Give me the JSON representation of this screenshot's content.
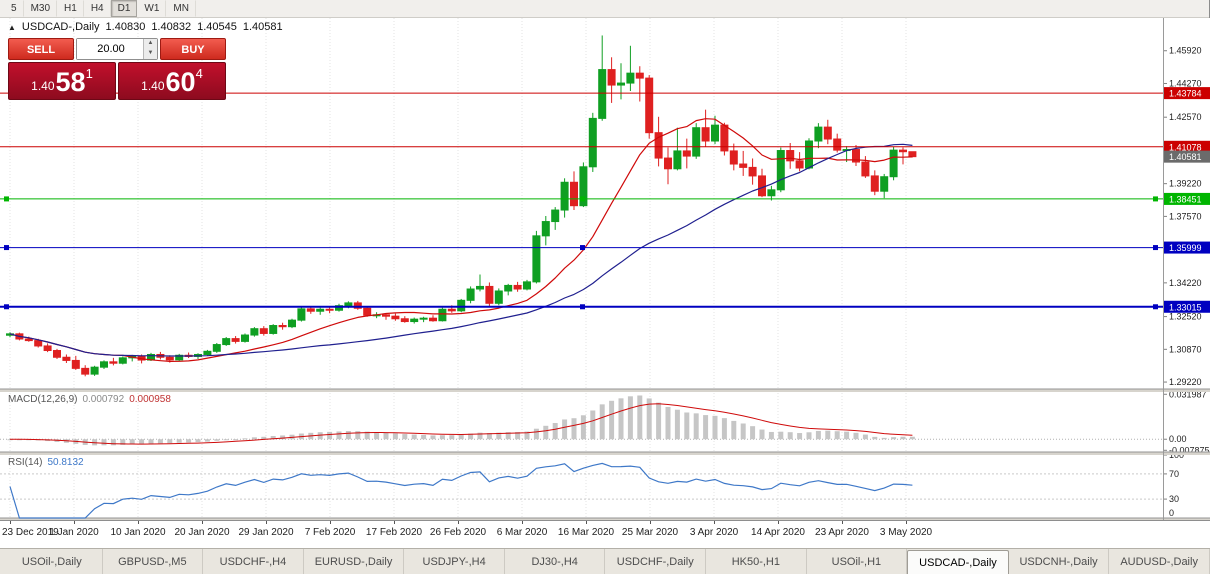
{
  "toolbar": {
    "timeframes": [
      "5",
      "M30",
      "H1",
      "H4",
      "D1",
      "W1",
      "MN"
    ],
    "active": "D1"
  },
  "chart_header": {
    "symbol": "USDCAD-,Daily",
    "open": "1.40830",
    "high": "1.40832",
    "low": "1.40545",
    "close": "1.40581"
  },
  "trade_panel": {
    "sell_label": "SELL",
    "buy_label": "BUY",
    "volume": "20.00",
    "sell_price": {
      "prefix": "1.40",
      "big": "58",
      "sup": "1"
    },
    "buy_price": {
      "prefix": "1.40",
      "big": "60",
      "sup": "4"
    }
  },
  "chart_data": {
    "type": "candlestick",
    "symbol": "USDCAD",
    "timeframe": "Daily",
    "ylim": [
      1.2887,
      1.4757
    ],
    "ytick_values": [
      1.2922,
      1.3087,
      1.3252,
      1.3422,
      1.3592,
      1.3757,
      1.3922,
      1.4092,
      1.4257,
      1.4427,
      1.4592
    ],
    "ytick_labels": [
      "1.29220",
      "1.30870",
      "1.32520",
      "1.34220",
      "1.35920",
      "1.37570",
      "1.39220",
      "1.40920",
      "1.42570",
      "1.44270",
      "1.45920"
    ],
    "xticks": [
      "23 Dec 2019",
      "1 Jan 2020",
      "10 Jan 2020",
      "20 Jan 2020",
      "29 Jan 2020",
      "7 Feb 2020",
      "17 Feb 2020",
      "26 Feb 2020",
      "6 Mar 2020",
      "16 Mar 2020",
      "25 Mar 2020",
      "3 Apr 2020",
      "14 Apr 2020",
      "23 Apr 2020",
      "3 May 2020"
    ],
    "up_color": "#0f9f22",
    "down_color": "#df2020",
    "candles": [
      [
        1.3158,
        1.3173,
        1.3148,
        1.3165
      ],
      [
        1.3165,
        1.3171,
        1.3132,
        1.3139
      ],
      [
        1.3139,
        1.3151,
        1.3125,
        1.3131
      ],
      [
        1.3131,
        1.314,
        1.3096,
        1.3104
      ],
      [
        1.3104,
        1.3117,
        1.3073,
        1.3081
      ],
      [
        1.3081,
        1.3089,
        1.3038,
        1.3047
      ],
      [
        1.3047,
        1.3061,
        1.3018,
        1.3031
      ],
      [
        1.3031,
        1.3054,
        1.2983,
        1.2991
      ],
      [
        1.2991,
        1.3007,
        1.2951,
        1.2962
      ],
      [
        1.2962,
        1.3004,
        1.2953,
        1.2997
      ],
      [
        1.2997,
        1.3031,
        1.2988,
        1.3024
      ],
      [
        1.3024,
        1.3044,
        1.3006,
        1.3017
      ],
      [
        1.3017,
        1.3051,
        1.3011,
        1.3044
      ],
      [
        1.3044,
        1.3059,
        1.3026,
        1.3051
      ],
      [
        1.3051,
        1.3061,
        1.3016,
        1.3033
      ],
      [
        1.3033,
        1.3069,
        1.3028,
        1.3061
      ],
      [
        1.3061,
        1.3074,
        1.3036,
        1.3047
      ],
      [
        1.3047,
        1.3057,
        1.302,
        1.3034
      ],
      [
        1.3034,
        1.3064,
        1.3026,
        1.3057
      ],
      [
        1.3057,
        1.3071,
        1.3043,
        1.3051
      ],
      [
        1.3051,
        1.3067,
        1.3038,
        1.3061
      ],
      [
        1.3061,
        1.3084,
        1.3053,
        1.3077
      ],
      [
        1.3077,
        1.3119,
        1.3069,
        1.3111
      ],
      [
        1.3111,
        1.3149,
        1.3104,
        1.3141
      ],
      [
        1.3141,
        1.3154,
        1.3116,
        1.3127
      ],
      [
        1.3127,
        1.3167,
        1.3121,
        1.3159
      ],
      [
        1.3159,
        1.3199,
        1.3151,
        1.3191
      ],
      [
        1.3191,
        1.3204,
        1.3156,
        1.3167
      ],
      [
        1.3167,
        1.3214,
        1.3161,
        1.3207
      ],
      [
        1.3207,
        1.3221,
        1.3186,
        1.3201
      ],
      [
        1.3201,
        1.3241,
        1.3194,
        1.3234
      ],
      [
        1.3234,
        1.3301,
        1.3227,
        1.3291
      ],
      [
        1.3291,
        1.3304,
        1.3266,
        1.3279
      ],
      [
        1.3279,
        1.3297,
        1.3261,
        1.3289
      ],
      [
        1.3289,
        1.3299,
        1.3269,
        1.3284
      ],
      [
        1.3284,
        1.3317,
        1.3277,
        1.3307
      ],
      [
        1.3307,
        1.3329,
        1.3294,
        1.3321
      ],
      [
        1.3321,
        1.3331,
        1.3286,
        1.3294
      ],
      [
        1.3294,
        1.3304,
        1.3251,
        1.3259
      ],
      [
        1.3259,
        1.3274,
        1.3244,
        1.3261
      ],
      [
        1.3261,
        1.3269,
        1.3236,
        1.3254
      ],
      [
        1.3254,
        1.3267,
        1.3231,
        1.3241
      ],
      [
        1.3241,
        1.3254,
        1.3221,
        1.3227
      ],
      [
        1.3227,
        1.3247,
        1.3217,
        1.3239
      ],
      [
        1.3239,
        1.3251,
        1.3224,
        1.3244
      ],
      [
        1.3244,
        1.3259,
        1.3226,
        1.3231
      ],
      [
        1.3231,
        1.3297,
        1.3227,
        1.3289
      ],
      [
        1.3289,
        1.3309,
        1.3271,
        1.3281
      ],
      [
        1.3281,
        1.3341,
        1.3274,
        1.3334
      ],
      [
        1.3334,
        1.3404,
        1.3319,
        1.3391
      ],
      [
        1.3391,
        1.3464,
        1.3379,
        1.3404
      ],
      [
        1.3404,
        1.3424,
        1.3304,
        1.3319
      ],
      [
        1.3319,
        1.3394,
        1.3309,
        1.3381
      ],
      [
        1.3381,
        1.3417,
        1.3359,
        1.3409
      ],
      [
        1.3409,
        1.3427,
        1.3377,
        1.3391
      ],
      [
        1.3391,
        1.3437,
        1.3384,
        1.3427
      ],
      [
        1.3427,
        1.3684,
        1.3419,
        1.3659
      ],
      [
        1.3659,
        1.3759,
        1.3611,
        1.3731
      ],
      [
        1.3731,
        1.3804,
        1.3689,
        1.3789
      ],
      [
        1.3789,
        1.3949,
        1.3751,
        1.3929
      ],
      [
        1.3929,
        1.3984,
        1.3789,
        1.3811
      ],
      [
        1.3811,
        1.4029,
        1.3804,
        1.4007
      ],
      [
        1.4007,
        1.4279,
        1.3981,
        1.4251
      ],
      [
        1.4251,
        1.4669,
        1.4239,
        1.4497
      ],
      [
        1.4497,
        1.4559,
        1.4329,
        1.4419
      ],
      [
        1.4419,
        1.4529,
        1.4347,
        1.4429
      ],
      [
        1.4429,
        1.4617,
        1.4389,
        1.4479
      ],
      [
        1.4479,
        1.4514,
        1.4336,
        1.4454
      ],
      [
        1.4454,
        1.4469,
        1.4149,
        1.4179
      ],
      [
        1.4179,
        1.4259,
        1.4009,
        1.4051
      ],
      [
        1.4051,
        1.4104,
        1.3919,
        1.3997
      ],
      [
        1.3997,
        1.4204,
        1.3989,
        1.4087
      ],
      [
        1.4087,
        1.4149,
        1.3999,
        1.4061
      ],
      [
        1.4061,
        1.4227,
        1.4047,
        1.4204
      ],
      [
        1.4204,
        1.4295,
        1.4107,
        1.4137
      ],
      [
        1.4137,
        1.4264,
        1.4121,
        1.4217
      ],
      [
        1.4217,
        1.4229,
        1.4064,
        1.4087
      ],
      [
        1.4087,
        1.4124,
        1.3989,
        1.4021
      ],
      [
        1.4021,
        1.4087,
        1.3961,
        1.4004
      ],
      [
        1.4004,
        1.4049,
        1.3917,
        1.3961
      ],
      [
        1.3961,
        1.3997,
        1.3854,
        1.3861
      ],
      [
        1.3861,
        1.3911,
        1.3837,
        1.3891
      ],
      [
        1.3891,
        1.4104,
        1.3879,
        1.4089
      ],
      [
        1.4089,
        1.4127,
        1.3997,
        1.4037
      ],
      [
        1.4037,
        1.4081,
        1.3984,
        1.4001
      ],
      [
        1.4001,
        1.4151,
        1.3994,
        1.4137
      ],
      [
        1.4137,
        1.4227,
        1.4101,
        1.4207
      ],
      [
        1.4207,
        1.4244,
        1.4121,
        1.4147
      ],
      [
        1.4147,
        1.4174,
        1.4079,
        1.4091
      ],
      [
        1.4091,
        1.4111,
        1.4031,
        1.4094
      ],
      [
        1.4094,
        1.4117,
        1.4011,
        1.4031
      ],
      [
        1.4031,
        1.4061,
        1.3951,
        1.3961
      ],
      [
        1.3961,
        1.3989,
        1.3864,
        1.3884
      ],
      [
        1.3884,
        1.3971,
        1.3849,
        1.3957
      ],
      [
        1.3957,
        1.4109,
        1.3939,
        1.4091
      ],
      [
        1.4091,
        1.4104,
        1.4019,
        1.4083
      ],
      [
        1.4083,
        1.40832,
        1.40545,
        1.40581
      ]
    ],
    "moving_averages": [
      {
        "period": 13,
        "color": "#cf0a0a"
      },
      {
        "period": 34,
        "color": "#20208f"
      }
    ],
    "hlines": [
      {
        "price": 1.43784,
        "label": "1.43784",
        "color": "#cc0000",
        "width": 1,
        "handles": false
      },
      {
        "price": 1.41078,
        "label": "1.41078",
        "color": "#cc0000",
        "width": 1,
        "handles": false
      },
      {
        "price": 1.38451,
        "label": "1.38451",
        "color": "#00b500",
        "width": 1,
        "handles": true
      },
      {
        "price": 1.35999,
        "label": "1.35999",
        "color": "#0000c0",
        "width": 1,
        "handles": true
      },
      {
        "price": 1.33015,
        "label": "1.33015",
        "color": "#0000c0",
        "width": 2,
        "handles": true
      }
    ],
    "current_price": {
      "value": 1.40581,
      "label": "1.40581",
      "color": "#6b6b6b"
    },
    "macd": {
      "label": "MACD(12,26,9)",
      "value1": "0.000792",
      "value2": "0.000958",
      "fast": 12,
      "slow": 26,
      "signal": 9,
      "axis_labels": [
        "0.031987",
        "0.00",
        "-0.007875"
      ],
      "axis_values": [
        0.031987,
        0,
        -0.007875
      ],
      "hist_color": "#c6c6c6",
      "signal_color": "#cf0a0a"
    },
    "rsi": {
      "label": "RSI(14)",
      "value": "50.8132",
      "period": 14,
      "levels": [
        70,
        30
      ],
      "axis_values": [
        100,
        70,
        30,
        0
      ],
      "axis_labels": [
        "100",
        "70",
        "30",
        "0"
      ],
      "color": "#3e78c8"
    }
  },
  "tabs": {
    "active_index": 9,
    "items": [
      "USOil-,Daily",
      "GBPUSD-,M5",
      "USDCHF-,H4",
      "EURUSD-,Daily",
      "USDJPY-,H4",
      "DJ30-,H4",
      "USDCHF-,Daily",
      "HK50-,H1",
      "USOil-,H1",
      "USDCAD-,Daily",
      "USDCNH-,Daily",
      "AUDUSD-,Daily"
    ]
  }
}
